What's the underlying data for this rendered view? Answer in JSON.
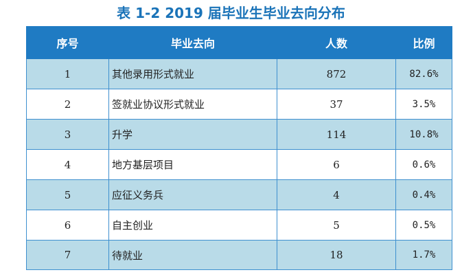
{
  "title": "表 1-2 2019 届毕业生毕业去向分布",
  "table": {
    "headers": [
      "序号",
      "毕业去向",
      "人数",
      "比例"
    ],
    "rows": [
      {
        "no": "1",
        "destination": "其他录用形式就业",
        "count": "872",
        "ratio": "82.6%"
      },
      {
        "no": "2",
        "destination": "签就业协议形式就业",
        "count": "37",
        "ratio": "3.5%"
      },
      {
        "no": "3",
        "destination": "升学",
        "count": "114",
        "ratio": "10.8%"
      },
      {
        "no": "4",
        "destination": "地方基层项目",
        "count": "6",
        "ratio": "0.6%"
      },
      {
        "no": "5",
        "destination": "应征义务兵",
        "count": "4",
        "ratio": "0.4%"
      },
      {
        "no": "6",
        "destination": "自主创业",
        "count": "5",
        "ratio": "0.5%"
      },
      {
        "no": "7",
        "destination": "待就业",
        "count": "18",
        "ratio": "1.7%"
      }
    ]
  }
}
